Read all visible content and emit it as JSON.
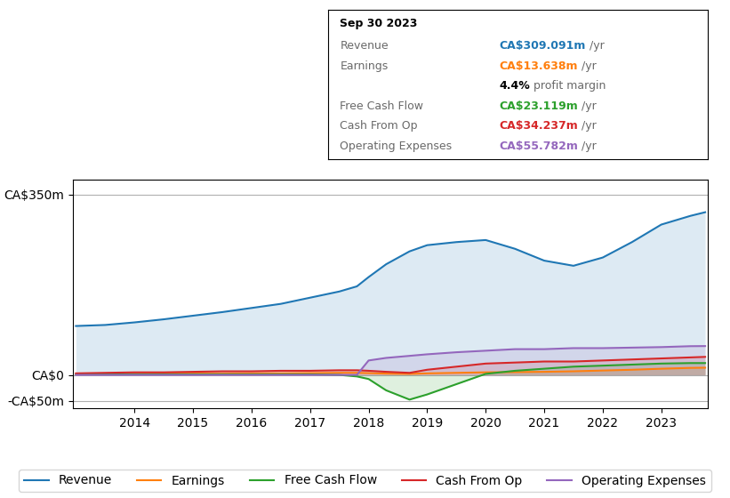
{
  "chart_data": {
    "type": "area",
    "x": [
      2013.0,
      2013.5,
      2014.0,
      2014.5,
      2015.0,
      2015.5,
      2016.0,
      2016.5,
      2017.0,
      2017.5,
      2017.8,
      2018.0,
      2018.3,
      2018.7,
      2019.0,
      2019.5,
      2020.0,
      2020.5,
      2021.0,
      2021.5,
      2022.0,
      2022.5,
      2023.0,
      2023.5,
      2023.75
    ],
    "series": [
      {
        "name": "Revenue",
        "values": [
          95,
          97,
          102,
          108,
          115,
          122,
          130,
          138,
          150,
          162,
          172,
          190,
          215,
          240,
          252,
          258,
          262,
          245,
          222,
          212,
          228,
          258,
          292,
          309,
          316
        ]
      },
      {
        "name": "Earnings",
        "values": [
          1.5,
          1.5,
          2,
          2.5,
          2.5,
          2.5,
          3,
          3,
          3.5,
          4,
          4,
          3.5,
          2.5,
          2,
          3,
          4,
          5,
          5.5,
          6,
          7,
          8.5,
          10,
          12,
          13.6,
          14
        ]
      },
      {
        "name": "Free Cash Flow",
        "values": [
          1,
          1,
          1,
          1,
          1,
          1,
          1,
          1,
          1,
          0,
          -3,
          -8,
          -30,
          -48,
          -38,
          -18,
          2,
          8,
          12,
          16,
          18,
          20,
          22,
          23,
          23
        ]
      },
      {
        "name": "Cash From Op",
        "values": [
          3,
          4,
          5,
          5,
          6,
          7,
          7,
          8,
          8,
          9,
          9,
          8,
          6,
          4,
          10,
          16,
          22,
          24,
          26,
          26,
          28,
          30,
          32,
          34,
          35
        ]
      },
      {
        "name": "Operating Expenses",
        "values": [
          0,
          0,
          0,
          0,
          0,
          0,
          0,
          0,
          0,
          0,
          0,
          28,
          33,
          37,
          40,
          44,
          47,
          50,
          50,
          52,
          52,
          53,
          54,
          55.8,
          56
        ]
      }
    ],
    "xlim": [
      2012.95,
      2023.8
    ],
    "xticks": [
      2014,
      2015,
      2016,
      2017,
      2018,
      2019,
      2020,
      2021,
      2022,
      2023
    ],
    "ylim": [
      -65,
      380
    ],
    "yticks": [
      {
        "value": -50,
        "label": "-CA$50m"
      },
      {
        "value": 0,
        "label": "CA$0"
      },
      {
        "value": 350,
        "label": "CA$350m"
      }
    ],
    "grid": true,
    "legend": "lower center",
    "info_box": {
      "title": "Sep 30 2023",
      "rows": [
        {
          "label": "Revenue",
          "value": "CA$309.091m",
          "unit": " /yr"
        },
        {
          "label": "Earnings",
          "value": "CA$13.638m",
          "unit": " /yr"
        },
        {
          "value": "4.4%",
          "unit": " profit margin"
        },
        {
          "label": "Free Cash Flow",
          "value": "CA$23.119m",
          "unit": " /yr"
        },
        {
          "label": "Cash From Op",
          "value": "CA$34.237m",
          "unit": " /yr"
        },
        {
          "label": "Operating Expenses",
          "value": "CA$55.782m",
          "unit": " /yr"
        }
      ]
    }
  }
}
